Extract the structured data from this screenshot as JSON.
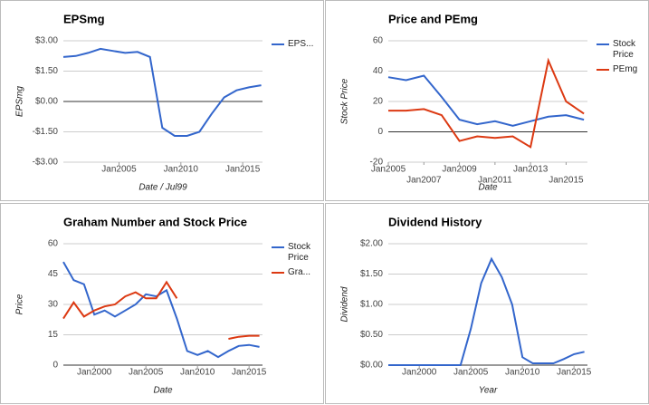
{
  "chart_data": [
    {
      "type": "line",
      "title": "EPSmg",
      "x_label": "Date / Jul99",
      "y_label": "EPSmg",
      "x": [
        2000.5,
        2001.5,
        2002.5,
        2003.5,
        2004.5,
        2005.5,
        2006.5,
        2007.5,
        2008.5,
        2009.5,
        2010.5,
        2011.5,
        2012.5,
        2013.5,
        2014.5,
        2015.5,
        2016.5
      ],
      "series": [
        {
          "name": "EPS...",
          "color": "#3366cc",
          "values": [
            2.2,
            2.25,
            2.4,
            2.6,
            2.5,
            2.4,
            2.45,
            2.2,
            -1.3,
            -1.7,
            -1.7,
            -1.5,
            -0.6,
            0.2,
            0.55,
            0.7,
            0.8
          ]
        }
      ],
      "xlim": [
        2000.5,
        2016.6
      ],
      "xticks": [
        {
          "value": 2005,
          "label": "Jan2005"
        },
        {
          "value": 2010,
          "label": "Jan2010"
        },
        {
          "value": 2015,
          "label": "Jan2015"
        }
      ],
      "ylim": [
        -3,
        3
      ],
      "yticks": [
        {
          "value": 3,
          "label": "$3.00"
        },
        {
          "value": 1.5,
          "label": "$1.50"
        },
        {
          "value": 0,
          "label": "$0.00"
        },
        {
          "value": -1.5,
          "label": "-$1.50"
        },
        {
          "value": -3,
          "label": "-$3.00"
        }
      ],
      "grid": true
    },
    {
      "type": "line",
      "title": "Price and PEmg",
      "x_label": "Date",
      "y_label": "Stock Price",
      "x": [
        2005,
        2006,
        2007,
        2008,
        2009,
        2010,
        2011,
        2012,
        2013,
        2014,
        2015,
        2016
      ],
      "series": [
        {
          "name": "Stock Price",
          "color": "#3366cc",
          "values": [
            36,
            34,
            37,
            23,
            8,
            5,
            7,
            4,
            7,
            10,
            11,
            8
          ]
        },
        {
          "name": "PEmg",
          "color": "#dc3912",
          "values": [
            14,
            14,
            15,
            11,
            -6,
            -3,
            -4,
            -3,
            -10,
            47,
            20,
            12
          ]
        }
      ],
      "xlim": [
        2005,
        2016.2
      ],
      "xticks": [
        {
          "value": 2005,
          "label": "Jan2005"
        },
        {
          "value": 2007,
          "label": "Jan2007"
        },
        {
          "value": 2009,
          "label": "Jan2009"
        },
        {
          "value": 2011,
          "label": "Jan2011"
        },
        {
          "value": 2013,
          "label": "Jan2013"
        },
        {
          "value": 2015,
          "label": "Jan2015"
        }
      ],
      "ylim": [
        -20,
        60
      ],
      "yticks": [
        60,
        40,
        20,
        0,
        -20
      ],
      "grid": true
    },
    {
      "type": "line",
      "title": "Graham Number and Stock Price",
      "x_label": "Date",
      "y_label": "Price",
      "x": [
        1997,
        1998,
        1999,
        2000,
        2001,
        2002,
        2003,
        2004,
        2005,
        2006,
        2007,
        2008,
        2009,
        2010,
        2011,
        2012,
        2013,
        2014,
        2015,
        2016
      ],
      "series": [
        {
          "name": "Stock Price",
          "color": "#3366cc",
          "values": [
            51,
            42,
            40,
            25,
            27,
            24,
            27,
            30,
            35,
            34,
            37,
            23,
            7,
            5,
            7,
            4,
            7,
            9.5,
            10,
            9
          ]
        },
        {
          "name": "Gra...",
          "color": "#dc3912",
          "values": [
            23,
            31,
            24,
            27,
            29,
            30,
            34,
            36,
            33,
            33,
            41,
            33,
            null,
            null,
            null,
            null,
            13,
            14,
            14.5,
            14.5
          ]
        }
      ],
      "xlim": [
        1997,
        2016.3
      ],
      "xticks": [
        {
          "value": 2000,
          "label": "Jan2000"
        },
        {
          "value": 2005,
          "label": "Jan2005"
        },
        {
          "value": 2010,
          "label": "Jan2010"
        },
        {
          "value": 2015,
          "label": "Jan2015"
        }
      ],
      "ylim": [
        0,
        60
      ],
      "yticks": [
        60,
        45,
        30,
        15,
        0
      ],
      "grid": true
    },
    {
      "type": "line",
      "title": "Dividend History",
      "x_label": "Year",
      "y_label": "Dividend",
      "x": [
        1997,
        1998,
        1999,
        2000,
        2001,
        2002,
        2003,
        2004,
        2005,
        2006,
        2007,
        2008,
        2009,
        2010,
        2011,
        2012,
        2013,
        2014,
        2015,
        2016
      ],
      "series": [
        {
          "name": null,
          "color": "#3366cc",
          "values": [
            0,
            0,
            0,
            0,
            0,
            0,
            0,
            0,
            0.6,
            1.35,
            1.75,
            1.45,
            1.0,
            0.13,
            0.03,
            0.03,
            0.03,
            0.1,
            0.18,
            0.22
          ]
        }
      ],
      "xlim": [
        1997,
        2016.3
      ],
      "xticks": [
        {
          "value": 2000,
          "label": "Jan2000"
        },
        {
          "value": 2005,
          "label": "Jan2005"
        },
        {
          "value": 2010,
          "label": "Jan2010"
        },
        {
          "value": 2015,
          "label": "Jan2015"
        }
      ],
      "ylim": [
        0,
        2
      ],
      "yticks": [
        {
          "value": 2,
          "label": "$2.00"
        },
        {
          "value": 1.5,
          "label": "$1.50"
        },
        {
          "value": 1,
          "label": "$1.00"
        },
        {
          "value": 0.5,
          "label": "$0.50"
        },
        {
          "value": 0,
          "label": "$0.00"
        }
      ],
      "grid": true
    }
  ]
}
